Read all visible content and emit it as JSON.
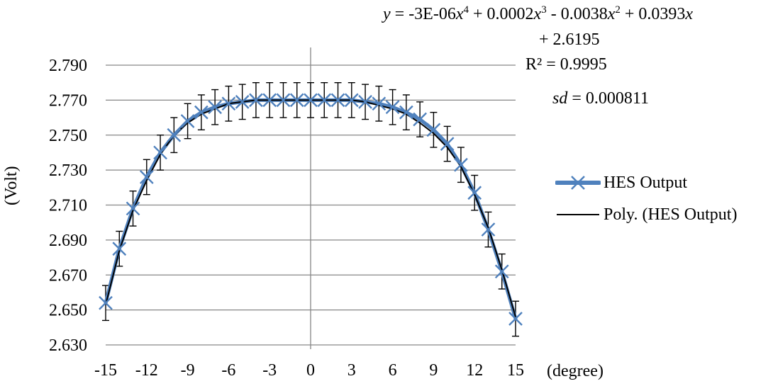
{
  "trendline": {
    "eq_prefix": "y",
    "eq_part1": " = -3E-06",
    "eq_t1_pow": "4",
    "eq_part2": "  + 0.0002",
    "eq_t2_pow": "3",
    "eq_part3": "  - 0.0038",
    "eq_t3_pow": "2",
    "eq_part4": "  + 0.0393",
    "eq_var": "x",
    "eq_line2": "+ 2.6195",
    "r2_label": "R² = 0.9995",
    "sd_var": "sd",
    "sd_value": " = 0.000811"
  },
  "colors": {
    "series": "#4f81bd",
    "trend": "#000000",
    "grid": "#868686",
    "text": "#000000"
  },
  "chart_data": {
    "type": "line",
    "title": "",
    "ylabel": "(Volt)",
    "xlabel": "(degree)",
    "ylim": [
      2.63,
      2.79
    ],
    "xlim": [
      -15,
      15
    ],
    "y_ticks": [
      "2.630",
      "2.650",
      "2.670",
      "2.690",
      "2.710",
      "2.730",
      "2.750",
      "2.770",
      "2.790"
    ],
    "x_ticks": [
      "-15",
      "-12",
      "-9",
      "-6",
      "-3",
      "0",
      "3",
      "6",
      "9",
      "12",
      "15"
    ],
    "grid": "horizontal",
    "legend_position": "right",
    "series": [
      {
        "name": "HES Output",
        "marker": "x",
        "error_bar": 0.01,
        "x": [
          -15,
          -14,
          -13,
          -12,
          -11,
          -10,
          -9,
          -8,
          -7,
          -6,
          -5,
          -4,
          -3,
          -2,
          -1,
          0,
          1,
          2,
          3,
          4,
          5,
          6,
          7,
          8,
          9,
          10,
          11,
          12,
          13,
          14,
          15
        ],
        "values": [
          2.654,
          2.685,
          2.708,
          2.726,
          2.74,
          2.75,
          2.758,
          2.763,
          2.766,
          2.768,
          2.769,
          2.77,
          2.77,
          2.77,
          2.77,
          2.77,
          2.77,
          2.77,
          2.77,
          2.769,
          2.768,
          2.766,
          2.763,
          2.759,
          2.753,
          2.745,
          2.733,
          2.717,
          2.696,
          2.672,
          2.645
        ]
      },
      {
        "name": "Poly. (HES Output)",
        "kind": "polynomial-trendline",
        "x": [
          -15,
          -14,
          -13,
          -12,
          -11,
          -10,
          -9,
          -8,
          -7,
          -6,
          -5,
          -4,
          -3,
          -2,
          -1,
          0,
          1,
          2,
          3,
          4,
          5,
          6,
          7,
          8,
          9,
          10,
          11,
          12,
          13,
          14,
          15
        ],
        "values": [
          2.653,
          2.684,
          2.707,
          2.724,
          2.739,
          2.75,
          2.757,
          2.762,
          2.765,
          2.768,
          2.769,
          2.77,
          2.77,
          2.77,
          2.77,
          2.77,
          2.77,
          2.77,
          2.77,
          2.769,
          2.767,
          2.765,
          2.762,
          2.757,
          2.751,
          2.743,
          2.732,
          2.716,
          2.697,
          2.673,
          2.646
        ]
      }
    ]
  }
}
